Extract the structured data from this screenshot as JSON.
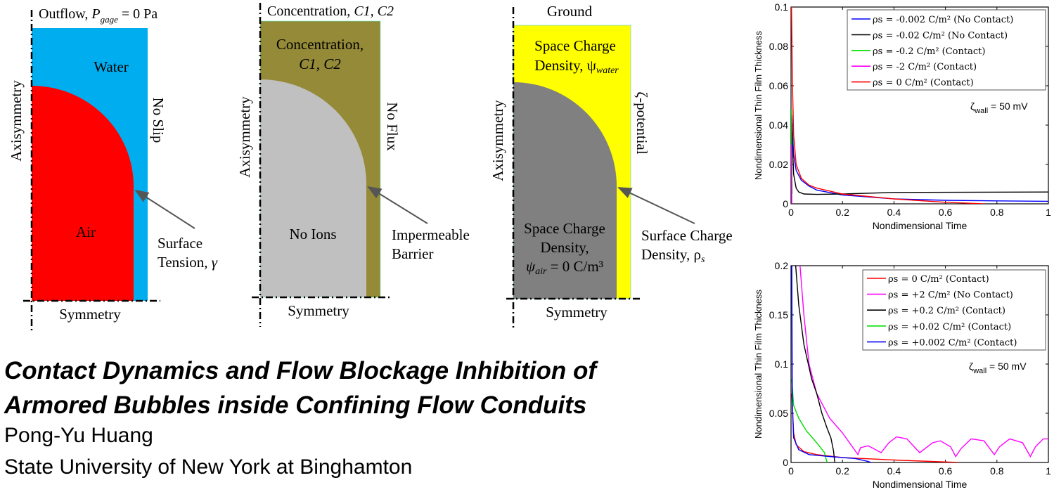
{
  "diagrams": {
    "flow": {
      "top": "Outflow, ",
      "top_var": "P",
      "top_sub": "gage",
      "top_rest": " = 0 Pa",
      "region_top": "Water",
      "region_bottom": "Air",
      "left": "Axisymmetry",
      "right": "No Slip",
      "bottom": "Symmetry",
      "arrow_label_1": "Surface",
      "arrow_label_2": "Tension, ",
      "arrow_label_var": "γ",
      "colors": {
        "outer": "#00aeef",
        "inner": "#ff0000"
      }
    },
    "concentration": {
      "top": "Concentration, ",
      "top_vars": "C1, C2",
      "region_top_1": "Concentration,",
      "region_top_2": "C1, C2",
      "region_bottom": "No Ions",
      "left": "Axisymmetry",
      "right": "No Flux",
      "bottom": "Symmetry",
      "arrow_label_1": "Impermeable",
      "arrow_label_2": "Barrier",
      "colors": {
        "outer": "#948a37",
        "inner": "#c0c0c0"
      }
    },
    "charge": {
      "top": "Ground",
      "region_top_1": "Space Charge",
      "region_top_2": "Density, ψ",
      "region_top_sub": "water",
      "region_bottom_1": "Space Charge",
      "region_bottom_2": "Density,",
      "region_bottom_3": "ψ",
      "region_bottom_sub": "air",
      "region_bottom_rest": " = 0 C/m³",
      "left": "Axisymmetry",
      "right": "ζ-potential",
      "bottom": "Symmetry",
      "arrow_label_1": "Surface Charge",
      "arrow_label_2": "Density, ρ",
      "arrow_label_sub": "s",
      "colors": {
        "outer": "#ffff00",
        "inner": "#808080"
      }
    }
  },
  "footer": {
    "title_line_1": "Contact Dynamics and Flow Blockage Inhibition of",
    "title_line_2": "Armored Bubbles inside Confining Flow Conduits",
    "author": "Pong-Yu Huang",
    "affiliation": "State University of New York at Binghamton"
  },
  "chart_data": [
    {
      "type": "line",
      "xlabel": "Nondimensional Time",
      "ylabel": "Nondimensional Thin Film Thickness",
      "xlim": [
        0,
        1
      ],
      "ylim": [
        0,
        0.1
      ],
      "xticks": [
        "0",
        "0.2",
        "0.4",
        "0.6",
        "0.8",
        "1"
      ],
      "yticks": [
        "0",
        "0.02",
        "0.04",
        "0.06",
        "0.08",
        "0.1"
      ],
      "annotation": {
        "symbol": "ζ",
        "sub": "wall",
        "text": " = 50 mV"
      },
      "legend_position": "top-right",
      "series": [
        {
          "name": "ρs = -0.002 C/m² (No Contact)",
          "color": "#0000ff",
          "points": [
            [
              0.003,
              0.045
            ],
            [
              0.01,
              0.025
            ],
            [
              0.02,
              0.017
            ],
            [
              0.04,
              0.012
            ],
            [
              0.07,
              0.009
            ],
            [
              0.1,
              0.007
            ],
            [
              0.2,
              0.0045
            ],
            [
              0.4,
              0.0025
            ],
            [
              0.6,
              0.0018
            ],
            [
              0.8,
              0.0015
            ],
            [
              1,
              0.0013
            ]
          ]
        },
        {
          "name": "ρs = -0.02 C/m² (No Contact)",
          "color": "#000000",
          "points": [
            [
              0.003,
              0.04
            ],
            [
              0.01,
              0.015
            ],
            [
              0.02,
              0.008
            ],
            [
              0.03,
              0.006
            ],
            [
              0.05,
              0.005
            ],
            [
              0.1,
              0.0048
            ],
            [
              0.2,
              0.005
            ],
            [
              0.4,
              0.0058
            ],
            [
              1,
              0.006
            ]
          ]
        },
        {
          "name": "ρs = -0.2 C/m² (Contact)",
          "color": "#00dd00",
          "points": [
            [
              0.002,
              0.048
            ],
            [
              0.003,
              0.02
            ],
            [
              0.004,
              0.005
            ]
          ]
        },
        {
          "name": "ρs = -2 C/m² (Contact)",
          "color": "#ff00ff",
          "points": [
            [
              0.002,
              0.03
            ],
            [
              0.003,
              0.0
            ]
          ]
        },
        {
          "name": "ρs = 0 C/m² (Contact)",
          "color": "#ff0000",
          "points": [
            [
              0.002,
              0.1
            ],
            [
              0.005,
              0.065
            ],
            [
              0.01,
              0.035
            ],
            [
              0.02,
              0.02
            ],
            [
              0.04,
              0.013
            ],
            [
              0.07,
              0.0095
            ],
            [
              0.1,
              0.008
            ],
            [
              0.2,
              0.005
            ],
            [
              0.4,
              0.0025
            ],
            [
              0.6,
              0.0008
            ],
            [
              0.75,
              0
            ]
          ]
        }
      ]
    },
    {
      "type": "line",
      "xlabel": "Nondimensional Time",
      "ylabel": "Nondimensional Thin Film Thickness",
      "xlim": [
        0,
        1
      ],
      "ylim": [
        0,
        0.2
      ],
      "xticks": [
        "0",
        "0.2",
        "0.4",
        "0.6",
        "0.8",
        "1"
      ],
      "yticks": [
        "0",
        "0.05",
        "0.1",
        "0.15",
        "0.2"
      ],
      "annotation": {
        "symbol": "ζ",
        "sub": "wall",
        "text": " = 50 mV"
      },
      "legend_position": "top-right",
      "series": [
        {
          "name": "ρs = 0 C/m² (Contact)",
          "color": "#ff0000",
          "points": [
            [
              0.003,
              0.07
            ],
            [
              0.01,
              0.03
            ],
            [
              0.02,
              0.018
            ],
            [
              0.05,
              0.011
            ],
            [
              0.1,
              0.008
            ],
            [
              0.2,
              0.005
            ],
            [
              0.4,
              0.0025
            ],
            [
              0.65,
              0
            ]
          ]
        },
        {
          "name": "ρs = +2 C/m² (No Contact)",
          "color": "#ff00ff",
          "points": [
            [
              0.035,
              0.2
            ],
            [
              0.05,
              0.15
            ],
            [
              0.07,
              0.1
            ],
            [
              0.1,
              0.07
            ],
            [
              0.15,
              0.045
            ],
            [
              0.2,
              0.03
            ],
            [
              0.26,
              0.008
            ],
            [
              0.27,
              0.015
            ],
            [
              0.3,
              0.017
            ],
            [
              0.35,
              0.01
            ],
            [
              0.38,
              0.02
            ],
            [
              0.41,
              0.026
            ],
            [
              0.45,
              0.024
            ],
            [
              0.5,
              0.01
            ],
            [
              0.51,
              0.012
            ],
            [
              0.55,
              0.02
            ],
            [
              0.58,
              0.022
            ],
            [
              0.62,
              0.016
            ],
            [
              0.64,
              0.006
            ],
            [
              0.66,
              0.014
            ],
            [
              0.7,
              0.024
            ],
            [
              0.75,
              0.022
            ],
            [
              0.79,
              0.008
            ],
            [
              0.81,
              0.016
            ],
            [
              0.85,
              0.024
            ],
            [
              0.9,
              0.02
            ],
            [
              0.93,
              0.006
            ],
            [
              0.95,
              0.016
            ],
            [
              0.98,
              0.024
            ],
            [
              1,
              0.024
            ]
          ]
        },
        {
          "name": "ρs = +0.2 C/m² (Contact)",
          "color": "#000000",
          "points": [
            [
              0.018,
              0.2
            ],
            [
              0.03,
              0.16
            ],
            [
              0.05,
              0.12
            ],
            [
              0.08,
              0.085
            ],
            [
              0.1,
              0.07
            ],
            [
              0.12,
              0.05
            ],
            [
              0.14,
              0.035
            ],
            [
              0.155,
              0.025
            ],
            [
              0.165,
              0.012
            ],
            [
              0.17,
              0
            ]
          ]
        },
        {
          "name": "ρs = +0.02 C/m² (Contact)",
          "color": "#00dd00",
          "points": [
            [
              0.003,
              0.085
            ],
            [
              0.01,
              0.058
            ],
            [
              0.03,
              0.045
            ],
            [
              0.06,
              0.032
            ],
            [
              0.1,
              0.02
            ],
            [
              0.13,
              0.01
            ],
            [
              0.14,
              0
            ]
          ]
        },
        {
          "name": "ρs = +0.002 C/m² (Contact)",
          "color": "#0000ff",
          "points": [
            [
              0.003,
              0.2
            ],
            [
              0.005,
              0.06
            ],
            [
              0.01,
              0.025
            ],
            [
              0.03,
              0.013
            ],
            [
              0.07,
              0.008
            ],
            [
              0.15,
              0.006
            ],
            [
              0.25,
              0.004
            ],
            [
              0.3,
              0.001
            ],
            [
              0.31,
              0
            ]
          ]
        }
      ]
    }
  ]
}
